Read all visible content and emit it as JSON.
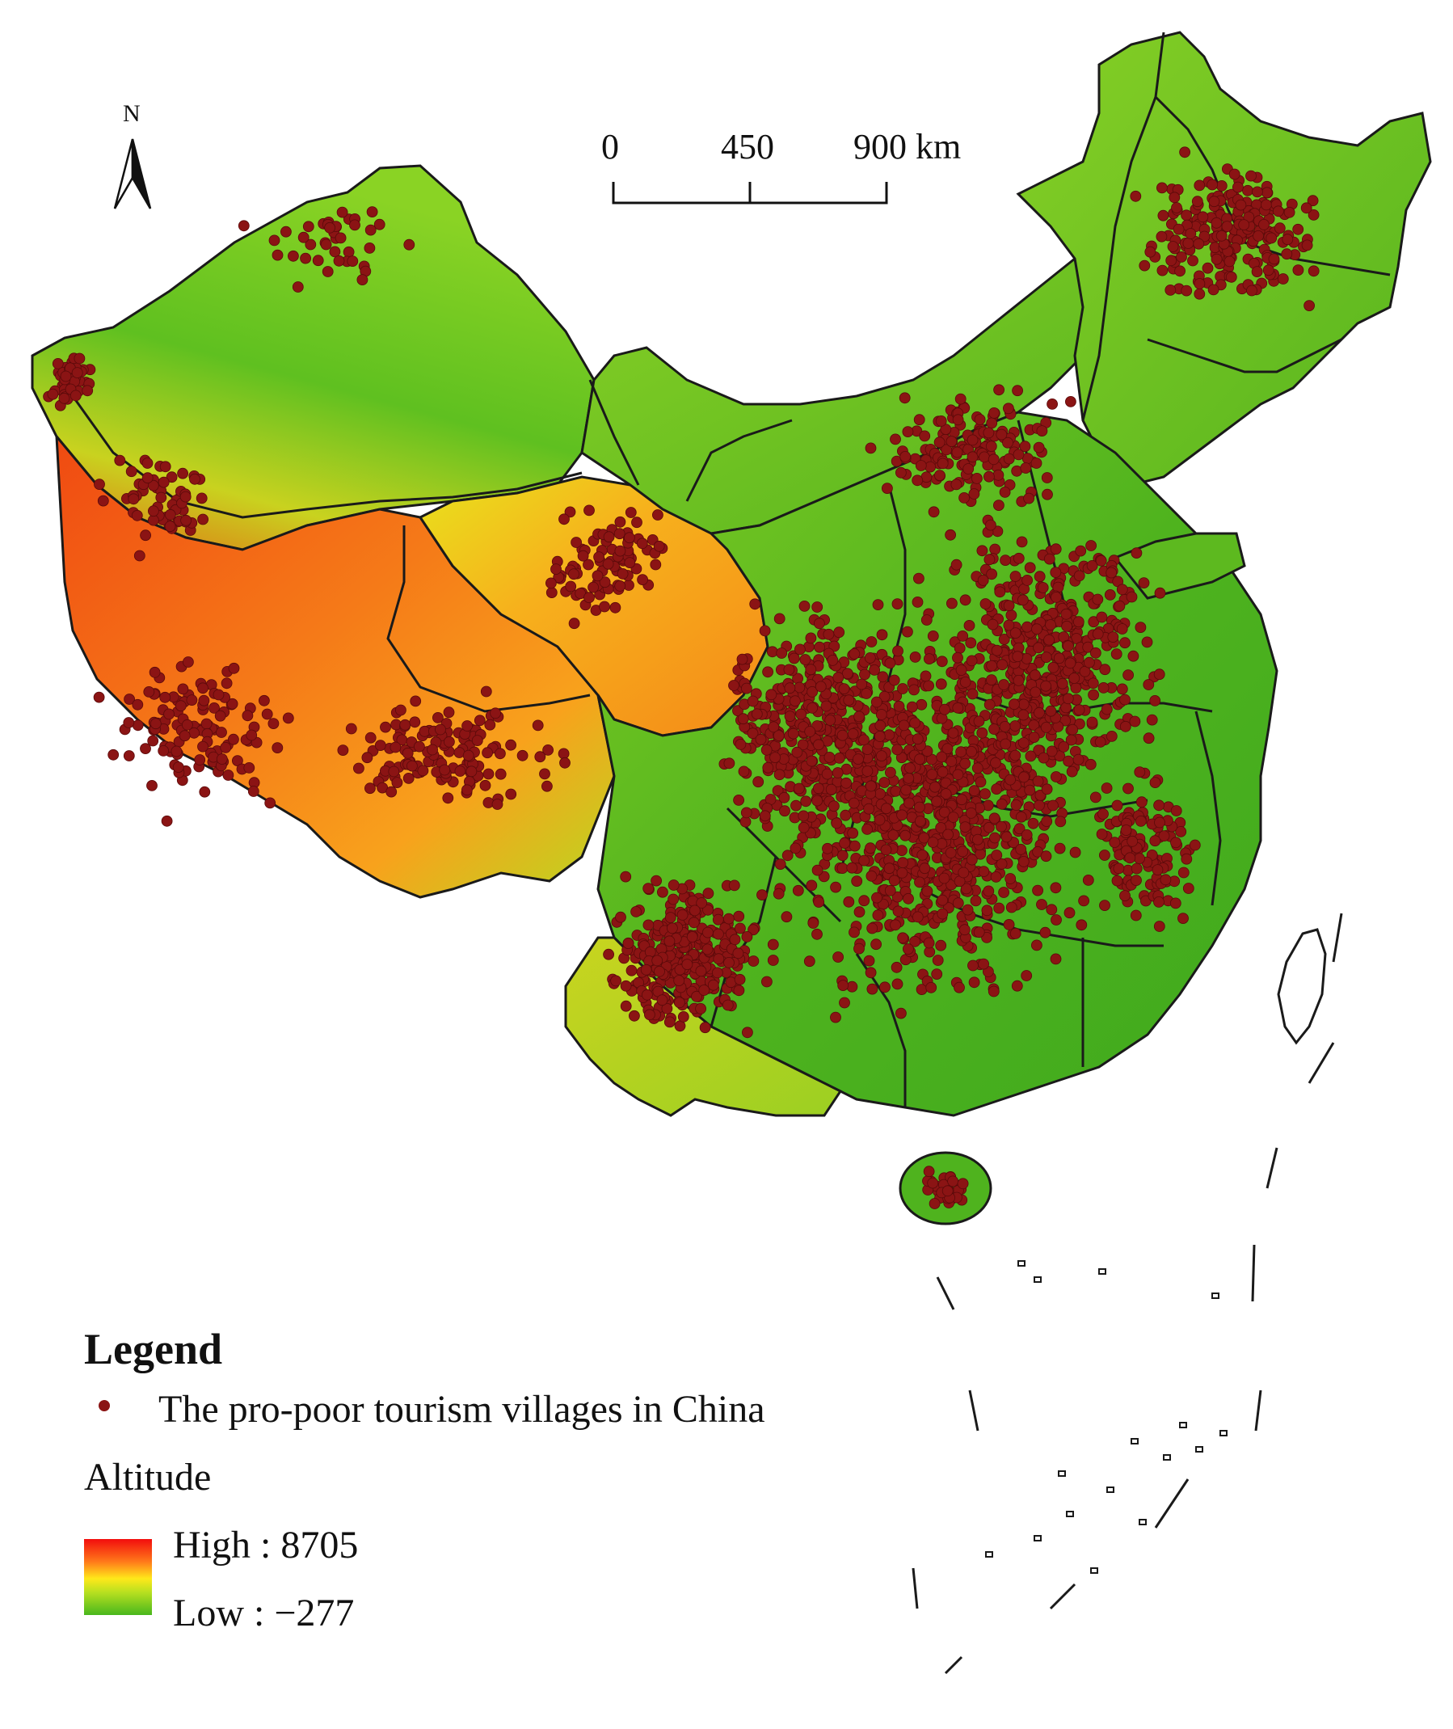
{
  "north_arrow": {
    "label": "N",
    "icon": "north-arrow-icon"
  },
  "scale_bar": {
    "ticks": [
      "0",
      "450",
      "900 km"
    ]
  },
  "legend": {
    "title": "Legend",
    "villages_label": "The pro-poor tourism villages in China",
    "altitude_title": "Altitude",
    "high_label": "High : 8705",
    "low_label": "Low : −277"
  },
  "colors": {
    "village_dot": "#8b1414",
    "altitude_high": "#f20d0d",
    "altitude_mid": "#ffe81a",
    "altitude_low": "#49b71d",
    "boundary": "#1a1a1a"
  }
}
